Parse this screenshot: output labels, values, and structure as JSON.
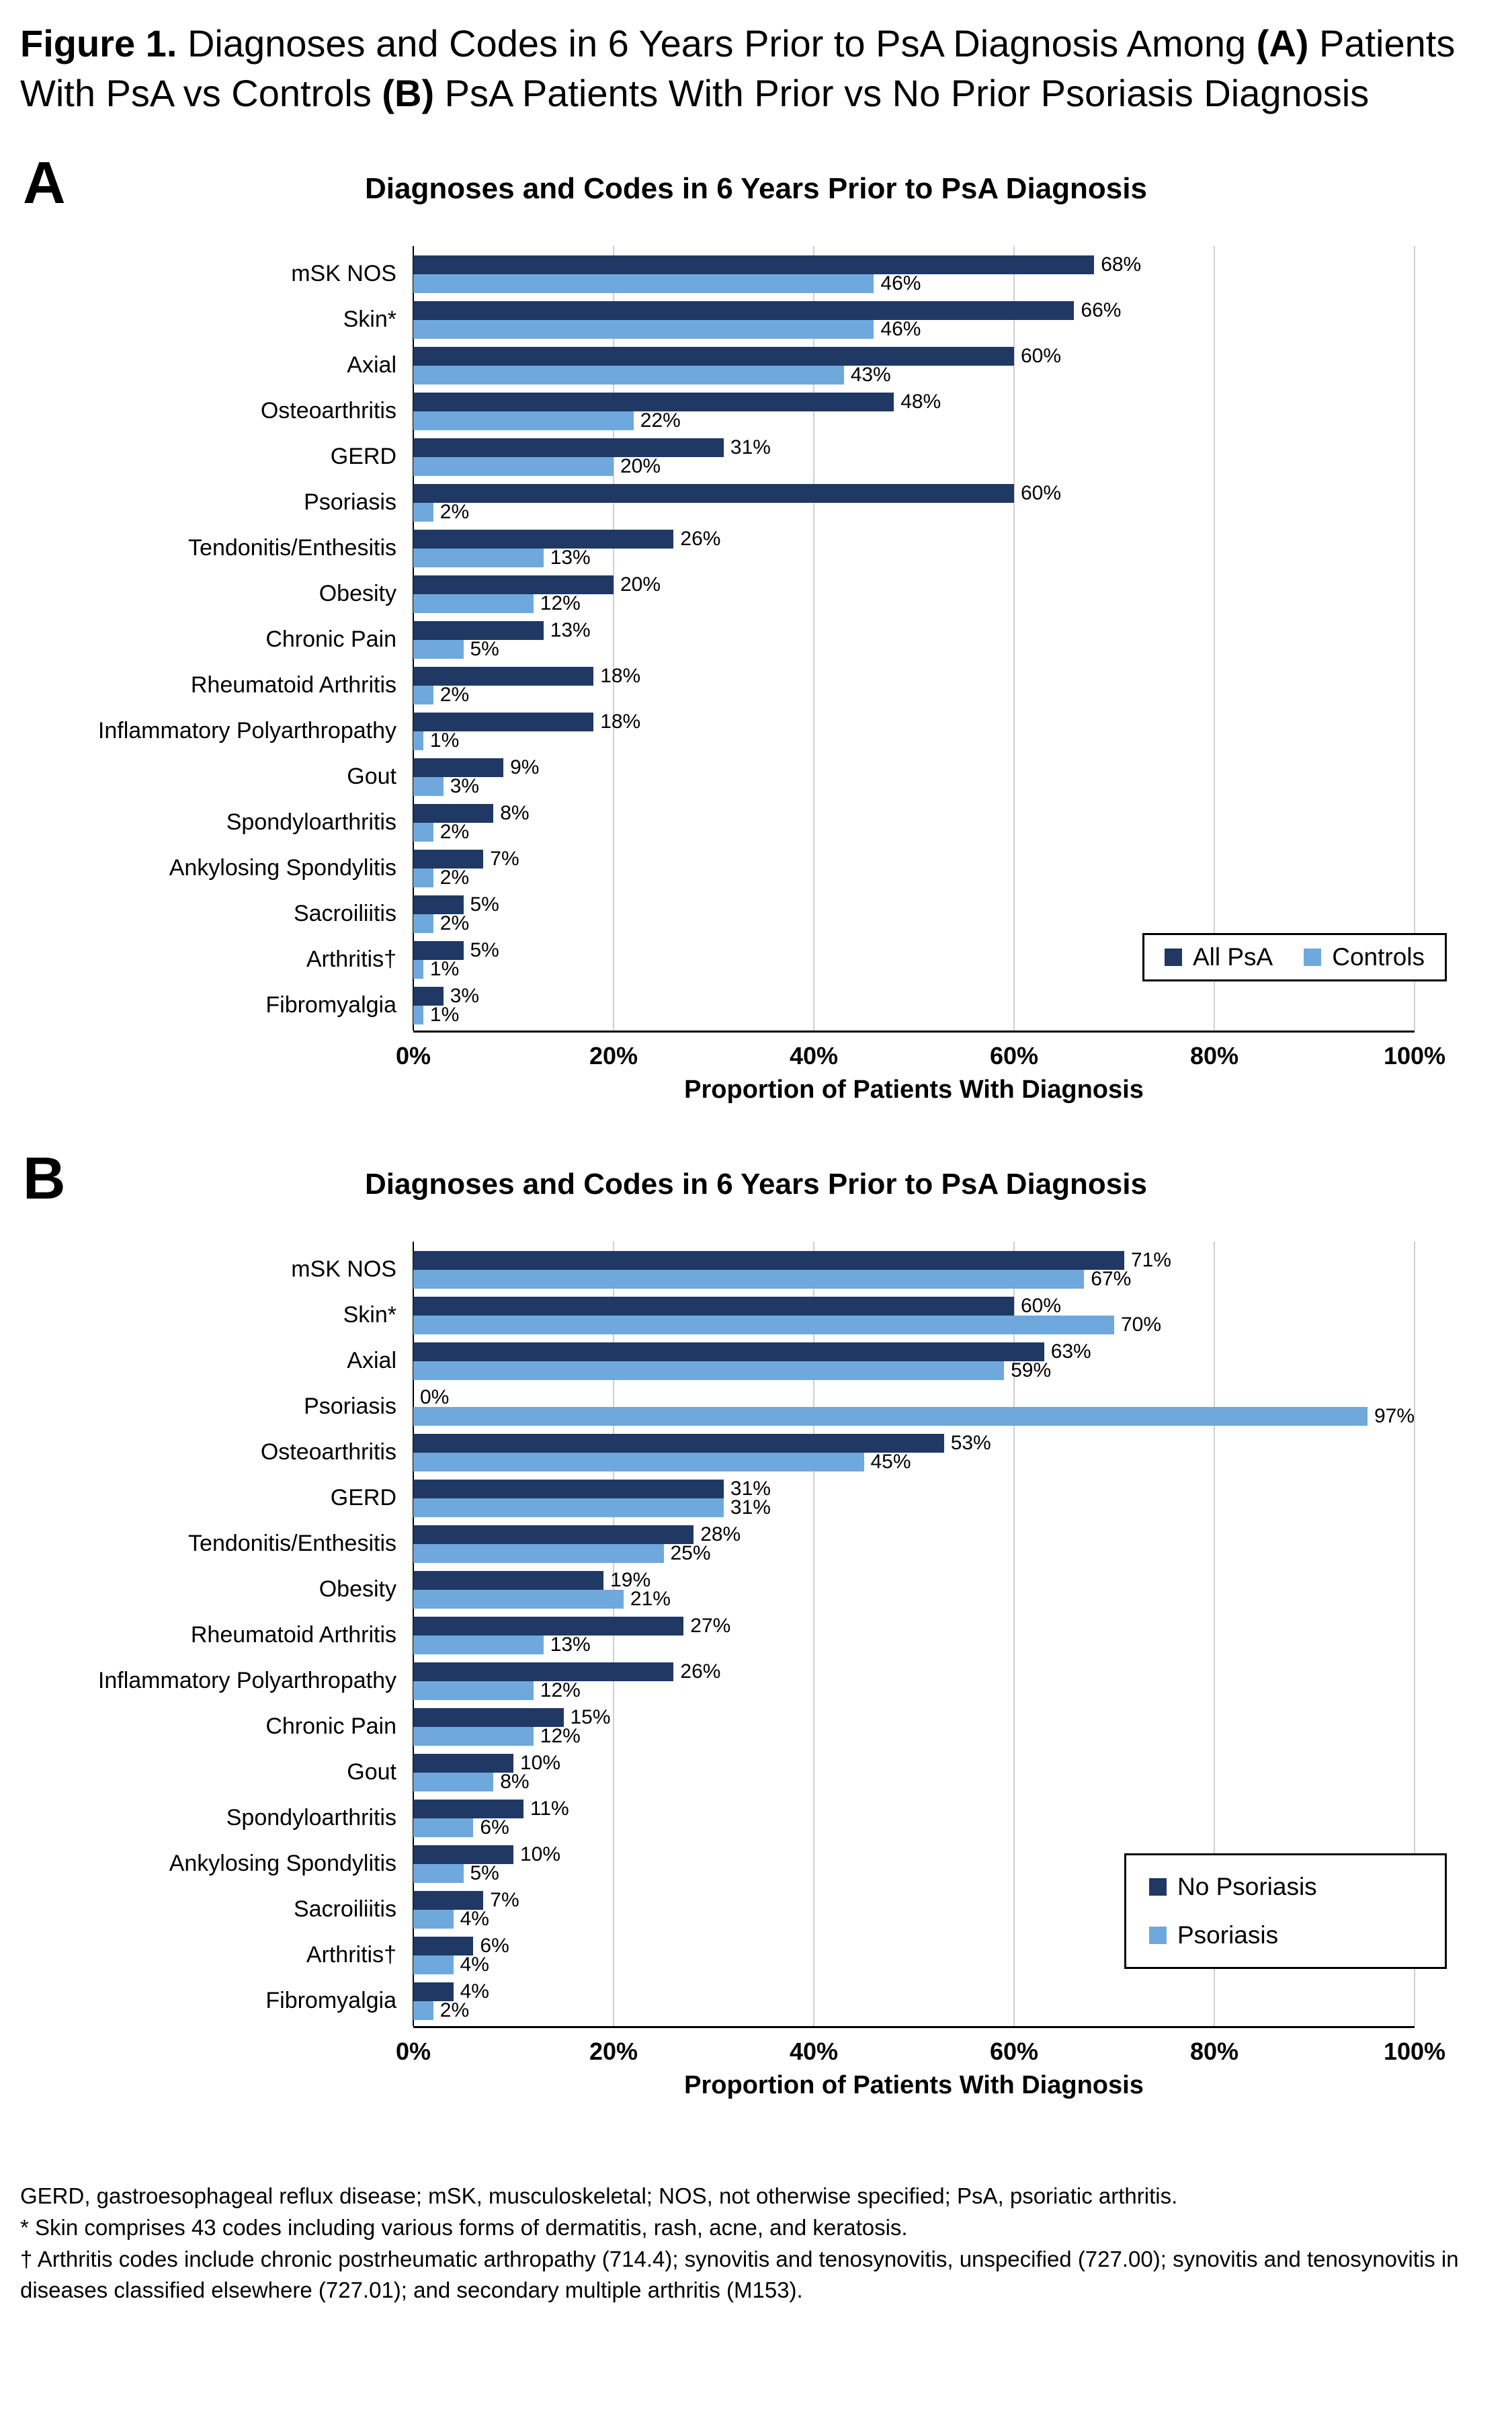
{
  "figure_title": {
    "segments": [
      {
        "text": "Figure 1.",
        "bold": true
      },
      {
        "text": " Diagnoses and Codes in 6 Years Prior to PsA Diagnosis Among ",
        "bold": false
      },
      {
        "text": "(A)",
        "bold": true
      },
      {
        "text": " Patients With PsA vs Controls ",
        "bold": false
      },
      {
        "text": "(B)",
        "bold": true
      },
      {
        "text": " PsA Patients With Prior vs No Prior Psoriasis Diagnosis",
        "bold": false
      }
    ]
  },
  "colors": {
    "series_dark": "#1F3864",
    "series_light": "#6FA8DC",
    "gridline": "#CFCFCF",
    "axis": "#000000"
  },
  "chart_data": [
    {
      "type": "bar",
      "panel": "A",
      "orientation": "horizontal",
      "title": "Diagnoses and Codes in 6 Years Prior to PsA Diagnosis",
      "categories": [
        "mSK NOS",
        "Skin*",
        "Axial",
        "Osteoarthritis",
        "GERD",
        "Psoriasis",
        "Tendonitis/Enthesitis",
        "Obesity",
        "Chronic Pain",
        "Rheumatoid Arthritis",
        "Inflammatory Polyarthropathy",
        "Gout",
        "Spondyloarthritis",
        "Ankylosing Spondylitis",
        "Sacroiliitis",
        "Arthritis†",
        "Fibromyalgia"
      ],
      "series": [
        {
          "name": "All PsA",
          "color": "#1F3864",
          "values": [
            68,
            66,
            60,
            48,
            31,
            60,
            26,
            20,
            13,
            18,
            18,
            9,
            8,
            7,
            5,
            5,
            3
          ]
        },
        {
          "name": "Controls",
          "color": "#6FA8DC",
          "values": [
            46,
            46,
            43,
            22,
            20,
            2,
            13,
            12,
            5,
            2,
            1,
            3,
            2,
            2,
            2,
            1,
            1
          ]
        }
      ],
      "value_suffix": "%",
      "xlabel": "Proportion of Patients With Diagnosis",
      "xlim": [
        0,
        100
      ],
      "xticks": [
        "0%",
        "20%",
        "40%",
        "60%",
        "80%",
        "100%"
      ],
      "grid": true,
      "legend_layout": "horizontal",
      "legend_position": "inside-lower-right"
    },
    {
      "type": "bar",
      "panel": "B",
      "orientation": "horizontal",
      "title": "Diagnoses and Codes in 6 Years Prior to PsA Diagnosis",
      "categories": [
        "mSK NOS",
        "Skin*",
        "Axial",
        "Psoriasis",
        "Osteoarthritis",
        "GERD",
        "Tendonitis/Enthesitis",
        "Obesity",
        "Rheumatoid Arthritis",
        "Inflammatory Polyarthropathy",
        "Chronic Pain",
        "Gout",
        "Spondyloarthritis",
        "Ankylosing Spondylitis",
        "Sacroiliitis",
        "Arthritis†",
        "Fibromyalgia"
      ],
      "series": [
        {
          "name": "No Psoriasis",
          "color": "#1F3864",
          "values": [
            71,
            60,
            63,
            0,
            53,
            31,
            28,
            19,
            27,
            26,
            15,
            10,
            11,
            10,
            7,
            6,
            4
          ]
        },
        {
          "name": "Psoriasis",
          "color": "#6FA8DC",
          "values": [
            67,
            70,
            59,
            97,
            45,
            31,
            25,
            21,
            13,
            12,
            12,
            8,
            6,
            5,
            4,
            4,
            2
          ]
        }
      ],
      "value_suffix": "%",
      "xlabel": "Proportion of Patients With Diagnosis",
      "xlim": [
        0,
        100
      ],
      "xticks": [
        "0%",
        "20%",
        "40%",
        "60%",
        "80%",
        "100%"
      ],
      "grid": true,
      "legend_layout": "vertical",
      "legend_position": "inside-lower-right"
    }
  ],
  "footnotes": [
    "GERD, gastroesophageal reflux disease; mSK, musculoskeletal; NOS, not otherwise specified; PsA, psoriatic arthritis.",
    "* Skin comprises 43 codes including various forms of dermatitis, rash, acne, and keratosis.",
    "† Arthritis codes include chronic postrheumatic arthropathy (714.4); synovitis and tenosynovitis, unspecified (727.00); synovitis and tenosynovitis in diseases classified elsewhere (727.01); and secondary multiple arthritis (M153)."
  ]
}
